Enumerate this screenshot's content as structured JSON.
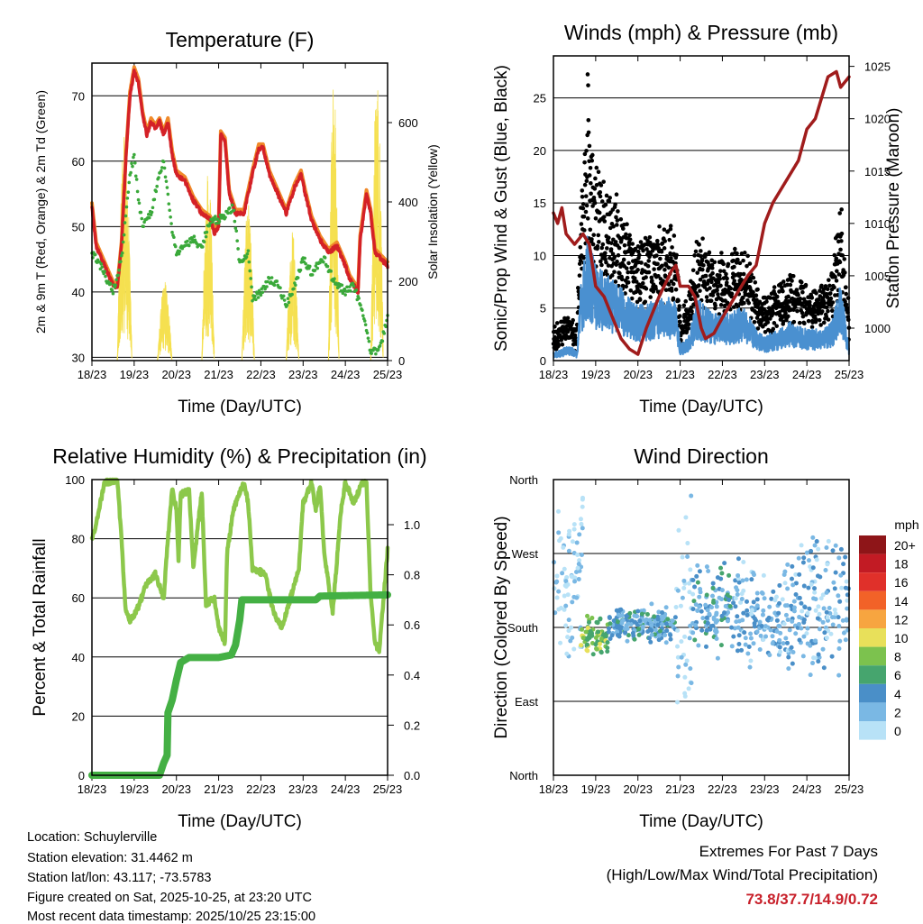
{
  "info": {
    "location": "Location: Schuylerville",
    "elevation": "Station elevation: 31.4462 m",
    "latlon": "Station lat/lon: 43.117; -73.5783",
    "created": "Figure created on Sat, 2025-10-25, at 23:20 UTC",
    "recent": "Most recent data timestamp: 2025/10/25 23:15:00"
  },
  "extremes": {
    "title": "Extremes For Past 7 Days",
    "subtitle": "(High/Low/Max Wind/Total Precipitation)",
    "values": "73.8/37.7/14.9/0.72"
  },
  "colors": {
    "temp2m": "#d42127",
    "temp9m": "#f08a2a",
    "dewpoint": "#3aa93a",
    "solar": "#f5e050",
    "wind": "#4a90d0",
    "gust": "#000000",
    "pressure": "#a01c1c",
    "rh": "#8cc84b",
    "precip": "#44b044"
  },
  "chart_data": [
    {
      "type": "line",
      "title": "Temperature (F)",
      "xlabel": "Time (Day/UTC)",
      "ylabel": "2m & 9m T (Red, Orange) & 2m Td (Green)",
      "y2label": "Solar Insolation (Yellow)",
      "xticks": [
        "18/23",
        "19/23",
        "20/23",
        "21/23",
        "22/23",
        "23/23",
        "24/23",
        "25/23"
      ],
      "ylim": [
        29.5,
        75
      ],
      "yticks": [
        30,
        40,
        50,
        60,
        70
      ],
      "y2lim": [
        0,
        750
      ],
      "y2ticks": [
        0,
        200,
        400,
        600
      ],
      "series": [
        {
          "name": "2m T",
          "x": [
            0,
            0.1,
            0.3,
            0.5,
            0.6,
            0.7,
            0.8,
            0.9,
            1.0,
            1.1,
            1.2,
            1.3,
            1.4,
            1.5,
            1.6,
            1.7,
            1.8,
            1.9,
            2.0,
            2.2,
            2.4,
            2.6,
            2.8,
            2.9,
            3.0,
            3.05,
            3.15,
            3.25,
            3.4,
            3.6,
            3.8,
            3.95,
            4.05,
            4.2,
            4.4,
            4.6,
            4.8,
            4.95,
            5.05,
            5.2,
            5.4,
            5.6,
            5.8,
            6.0,
            6.1,
            6.2,
            6.3,
            6.35,
            6.5,
            6.6,
            6.7,
            7.0
          ],
          "y": [
            53,
            47,
            44,
            41,
            40.5,
            47,
            60,
            70,
            73.8,
            72,
            67,
            64,
            66,
            65,
            66,
            64,
            66,
            61,
            58,
            57,
            54,
            52,
            51,
            49,
            50,
            64,
            63,
            55,
            52,
            52,
            58,
            62,
            62,
            58,
            55,
            52,
            56,
            58,
            55,
            51,
            48,
            46,
            47,
            44,
            42,
            41,
            40,
            48,
            55,
            52,
            46,
            44
          ]
        },
        {
          "name": "2m Td",
          "x": [
            0,
            0.2,
            0.5,
            0.7,
            0.9,
            1.0,
            1.1,
            1.2,
            1.4,
            1.6,
            1.7,
            1.8,
            1.9,
            2.0,
            2.2,
            2.4,
            2.6,
            2.8,
            3.0,
            3.2,
            3.35,
            3.5,
            3.7,
            3.8,
            4.0,
            4.2,
            4.4,
            4.6,
            4.8,
            5.0,
            5.2,
            5.5,
            5.7,
            6.0,
            6.2,
            6.4,
            6.5,
            6.6,
            6.8,
            7.0
          ],
          "y": [
            46,
            44,
            40,
            45,
            58,
            61,
            54,
            50,
            52,
            58,
            60,
            55,
            49,
            46,
            47,
            48,
            47,
            51,
            51,
            52,
            53,
            44,
            46,
            39,
            40,
            42,
            41,
            38,
            41,
            45,
            43,
            45,
            42,
            40,
            41,
            37,
            34,
            31,
            31,
            36
          ]
        },
        {
          "name": "Solar",
          "peaks": [
            {
              "start": 0.6,
              "end": 0.95,
              "max": 570
            },
            {
              "start": 1.55,
              "end": 1.9,
              "max": 200
            },
            {
              "start": 2.6,
              "end": 2.9,
              "max": 500
            },
            {
              "start": 3.55,
              "end": 3.85,
              "max": 400
            },
            {
              "start": 4.6,
              "end": 4.9,
              "max": 330
            },
            {
              "start": 5.6,
              "end": 5.85,
              "max": 700
            },
            {
              "start": 6.6,
              "end": 6.9,
              "max": 720
            }
          ]
        }
      ]
    },
    {
      "type": "scatter",
      "title": "Winds (mph) & Pressure (mb)",
      "xlabel": "Time (Day/UTC)",
      "ylabel": "Sonic/Prop Wind & Gust (Blue, Black)",
      "y2label": "Station Pressure (Maroon)",
      "xticks": [
        "18/23",
        "19/23",
        "20/23",
        "21/23",
        "22/23",
        "23/23",
        "24/23",
        "25/23"
      ],
      "ylim": [
        0,
        29
      ],
      "yticks": [
        0,
        5,
        10,
        15,
        20,
        25
      ],
      "y2lim": [
        996.9,
        1026
      ],
      "y2ticks": [
        1000,
        1005,
        1010,
        1015,
        1020,
        1025
      ],
      "series": [
        {
          "name": "Wind",
          "x": [
            0,
            0.4,
            0.55,
            0.65,
            0.8,
            1.0,
            1.5,
            1.8,
            2.0,
            2.5,
            2.9,
            3.0,
            3.2,
            3.4,
            3.8,
            4.2,
            4.5,
            4.8,
            5.0,
            5.3,
            5.6,
            6.0,
            6.3,
            6.6,
            6.8,
            7.0
          ],
          "y": [
            0.5,
            1,
            0.5,
            5,
            8,
            6,
            5,
            4,
            3.5,
            4,
            4,
            1,
            1.5,
            4,
            3,
            3,
            3.5,
            2,
            1.5,
            2,
            2.5,
            2,
            2,
            2.5,
            5,
            1
          ]
        },
        {
          "name": "Pressure",
          "x": [
            0,
            0.1,
            0.2,
            0.3,
            0.5,
            0.7,
            0.85,
            1.0,
            1.2,
            1.4,
            1.5,
            1.6,
            1.8,
            2.0,
            2.2,
            2.5,
            2.8,
            2.9,
            3.0,
            3.2,
            3.35,
            3.5,
            3.6,
            3.8,
            4.0,
            4.3,
            4.6,
            4.8,
            5.0,
            5.2,
            5.5,
            5.8,
            6.0,
            6.2,
            6.5,
            6.7,
            6.8,
            6.9,
            7.0
          ],
          "y": [
            1011,
            1010,
            1011.5,
            1009,
            1008,
            1009,
            1008,
            1004,
            1003,
            1001,
            1000,
            999,
            998,
            997.5,
            1000,
            1003,
            1005.5,
            1006,
            1004,
            1004,
            1003,
            1000,
            999,
            999.5,
            1001,
            1003,
            1005,
            1006,
            1010,
            1012,
            1014,
            1016,
            1019,
            1020,
            1024,
            1024.5,
            1023,
            1023.5,
            1024
          ]
        }
      ]
    },
    {
      "type": "line",
      "title": "Relative Humidity (%) & Precipitation (in)",
      "xlabel": "Time (Day/UTC)",
      "ylabel": "Percent & Total Rainfall",
      "xticks": [
        "18/23",
        "19/23",
        "20/23",
        "21/23",
        "22/23",
        "23/23",
        "24/23",
        "25/23"
      ],
      "ylim": [
        0,
        100
      ],
      "yticks": [
        0,
        20,
        40,
        60,
        80,
        100
      ],
      "y2lim": [
        0,
        1.18
      ],
      "y2ticks": [
        "0.0",
        "0.2",
        "0.4",
        "0.6",
        "0.8",
        "1.0"
      ],
      "series": [
        {
          "name": "RH",
          "x": [
            0,
            0.1,
            0.3,
            0.6,
            0.7,
            0.8,
            0.9,
            1.1,
            1.3,
            1.5,
            1.7,
            1.8,
            1.9,
            2.0,
            2.05,
            2.1,
            2.3,
            2.4,
            2.6,
            2.7,
            2.9,
            3.0,
            3.15,
            3.2,
            3.35,
            3.6,
            3.7,
            3.8,
            4.1,
            4.3,
            4.5,
            4.7,
            4.9,
            5.0,
            5.2,
            5.3,
            5.4,
            5.5,
            5.7,
            5.9,
            6.0,
            6.2,
            6.4,
            6.5,
            6.6,
            6.7,
            6.8,
            7.0
          ],
          "y": [
            80,
            85,
            99,
            100,
            80,
            55,
            52,
            57,
            65,
            68,
            60,
            80,
            97,
            90,
            73,
            95,
            96,
            70,
            96,
            58,
            60,
            50,
            45,
            75,
            90,
            99,
            92,
            70,
            68,
            55,
            50,
            60,
            70,
            92,
            99,
            90,
            98,
            75,
            55,
            90,
            99,
            92,
            99,
            99,
            60,
            45,
            42,
            76
          ]
        },
        {
          "name": "Precip",
          "x": [
            0,
            1.6,
            1.7,
            1.78,
            1.8,
            1.9,
            2.0,
            2.1,
            2.3,
            3.0,
            3.3,
            3.4,
            3.5,
            3.55,
            4.5,
            5.3,
            5.4,
            7.0
          ],
          "y": [
            0,
            0,
            0.05,
            0.08,
            0.25,
            0.3,
            0.38,
            0.45,
            0.47,
            0.47,
            0.48,
            0.52,
            0.62,
            0.7,
            0.7,
            0.7,
            0.715,
            0.72
          ]
        }
      ]
    },
    {
      "type": "scatter",
      "title": "Wind Direction",
      "xlabel": "Time (Day/UTC)",
      "ylabel": "Direction (Colored By Speed)",
      "xticks": [
        "18/23",
        "19/23",
        "20/23",
        "21/23",
        "22/23",
        "23/23",
        "24/23",
        "25/23"
      ],
      "ylim": [
        0,
        360
      ],
      "ytick_labels": [
        "North",
        "East",
        "South",
        "West",
        "North"
      ],
      "legend": {
        "title": "mph",
        "labels": [
          "20+",
          "18",
          "16",
          "14",
          "12",
          "10",
          "8",
          "6",
          "4",
          "2",
          "0"
        ],
        "colors": [
          "#8e1518",
          "#c21b24",
          "#e0302a",
          "#f26228",
          "#f7a540",
          "#e8e05a",
          "#7cc24e",
          "#46a56e",
          "#4a8fc8",
          "#7ab8e4",
          "#b8e2f7"
        ]
      },
      "clusters": [
        {
          "start": 0,
          "end": 0.7,
          "dir": 240,
          "spread": 120,
          "speed": 1
        },
        {
          "start": 0.65,
          "end": 1.3,
          "dir": 170,
          "spread": 25,
          "speed": 8
        },
        {
          "start": 1.3,
          "end": 2.9,
          "dir": 185,
          "spread": 25,
          "speed": 4
        },
        {
          "start": 2.9,
          "end": 3.3,
          "dir": 180,
          "spread": 170,
          "speed": 1
        },
        {
          "start": 3.3,
          "end": 4.3,
          "dir": 200,
          "spread": 60,
          "speed": 4
        },
        {
          "start": 4.3,
          "end": 5.8,
          "dir": 195,
          "spread": 70,
          "speed": 3
        },
        {
          "start": 5.8,
          "end": 7.0,
          "dir": 210,
          "spread": 100,
          "speed": 3
        }
      ]
    }
  ]
}
